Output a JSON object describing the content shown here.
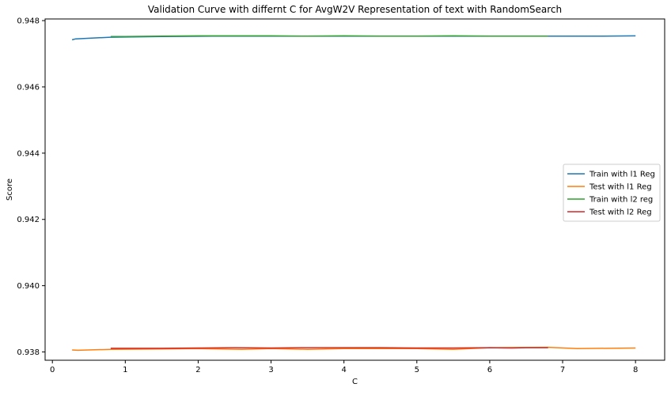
{
  "chart_data": {
    "type": "line",
    "title": "Validation Curve with differnt C for AvgW2V Representation of text with RandomSearch",
    "xlabel": "C",
    "ylabel": "Score",
    "xlim": [
      -0.1,
      8.4
    ],
    "ylim": [
      0.93775,
      0.94805
    ],
    "xticks": [
      0,
      1,
      2,
      3,
      4,
      5,
      6,
      7,
      8
    ],
    "xtick_labels": [
      "0",
      "1",
      "2",
      "3",
      "4",
      "5",
      "6",
      "7",
      "8"
    ],
    "yticks": [
      0.938,
      0.94,
      0.942,
      0.944,
      0.946,
      0.948
    ],
    "ytick_labels": [
      "0.938",
      "0.940",
      "0.942",
      "0.944",
      "0.946",
      "0.948"
    ],
    "grid": false,
    "legend_position": "center-right",
    "series": [
      {
        "name": "Train with l1 Reg",
        "color": "#1f77b4",
        "x": [
          0.27,
          0.32,
          0.8,
          1.5,
          2.2,
          3.0,
          3.5,
          4.0,
          4.4,
          5.0,
          5.5,
          6.0,
          6.5,
          7.0,
          7.5,
          8.0
        ],
        "y": [
          0.94742,
          0.94745,
          0.9475,
          0.94752,
          0.94753,
          0.94753,
          0.94753,
          0.94753,
          0.94753,
          0.94753,
          0.94753,
          0.94753,
          0.94753,
          0.94753,
          0.94753,
          0.94754
        ]
      },
      {
        "name": "Test with l1 Reg",
        "color": "#ff7f0e",
        "x": [
          0.27,
          0.35,
          0.8,
          1.5,
          2.0,
          2.6,
          3.0,
          3.5,
          4.0,
          5.0,
          5.5,
          6.0,
          6.8,
          7.2,
          8.0
        ],
        "y": [
          0.93806,
          0.93805,
          0.93808,
          0.93809,
          0.9381,
          0.93808,
          0.9381,
          0.93808,
          0.9381,
          0.9381,
          0.93808,
          0.93813,
          0.93814,
          0.9381,
          0.93812
        ]
      },
      {
        "name": "Train with l2 reg",
        "color": "#2ca02c",
        "x": [
          0.8,
          1.0,
          1.5,
          2.0,
          2.5,
          3.0,
          3.5,
          4.0,
          4.5,
          5.0,
          5.5,
          6.0,
          6.5,
          6.8
        ],
        "y": [
          0.94752,
          0.94752,
          0.94753,
          0.94754,
          0.94754,
          0.94754,
          0.94753,
          0.94754,
          0.94753,
          0.94753,
          0.94754,
          0.94753,
          0.94753,
          0.94753
        ]
      },
      {
        "name": "Test with l2 Reg",
        "color": "#d62728",
        "x": [
          0.8,
          1.0,
          1.5,
          2.0,
          2.5,
          3.0,
          3.5,
          4.0,
          4.5,
          5.0,
          5.5,
          6.0,
          6.3,
          6.5,
          6.8
        ],
        "y": [
          0.93811,
          0.93811,
          0.93811,
          0.93812,
          0.93813,
          0.93812,
          0.93813,
          0.93813,
          0.93813,
          0.93812,
          0.93812,
          0.93813,
          0.93812,
          0.93813,
          0.93813
        ]
      }
    ]
  }
}
